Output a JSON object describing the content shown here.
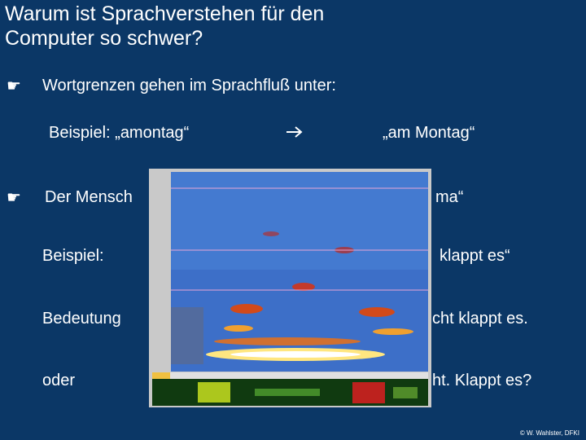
{
  "title": "Warum ist Sprachverstehen für den Computer so schwer?",
  "bullets": [
    {
      "text": "Wortgrenzen gehen im Sprachfluß unter:",
      "example": "Beispiel: „amontag“",
      "result": "„am Montag“"
    },
    {
      "left": "Der Mensch",
      "right": "ma“"
    }
  ],
  "lines": [
    {
      "left": "Beispiel:",
      "right": "klappt es“"
    },
    {
      "left": "Bedeutung",
      "right": "cht klappt es."
    },
    {
      "left": "oder",
      "right": "ht. Klappt es?"
    }
  ],
  "footer": "© W. Wahlster, DFKI"
}
